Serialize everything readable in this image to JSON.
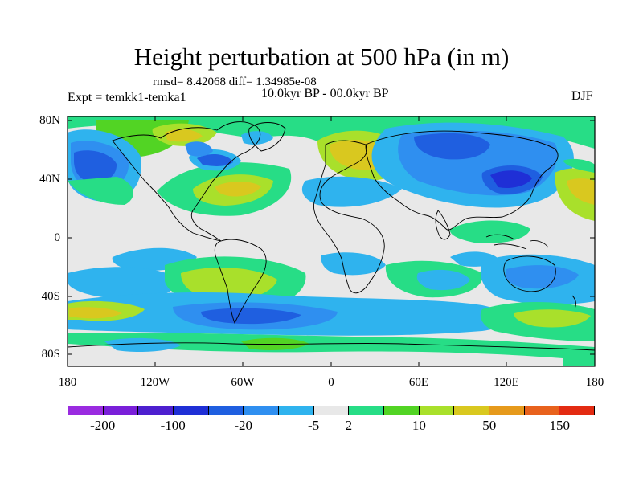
{
  "title": "Height perturbation at 500 hPa (in m)",
  "stats": "rmsd= 8.42068 diff= 1.34985e-08",
  "period": "10.0kyr BP - 00.0kyr BP",
  "experiment": "Expt = temkk1-temka1",
  "season": "DJF",
  "lat_labels": [
    "80N",
    "40N",
    "0",
    "40S",
    "80S"
  ],
  "lon_labels": [
    "180",
    "120W",
    "60W",
    "0",
    "60E",
    "120E",
    "180"
  ],
  "colorbar": {
    "colors": [
      "#9a2be0",
      "#7a1fd9",
      "#4d1fcf",
      "#1f2fd6",
      "#1f5fe0",
      "#2f8ff0",
      "#2fb3ee",
      "#e8e8e8",
      "#27dd86",
      "#52d424",
      "#a9e02b",
      "#d9c81f",
      "#e69a1c",
      "#e8621d",
      "#e32b12"
    ],
    "labels": [
      "-200",
      "-100",
      "-20",
      "-5",
      "2",
      "10",
      "50",
      "150"
    ],
    "label_tick_index": [
      1,
      3,
      5,
      7,
      8,
      10,
      12,
      14
    ]
  },
  "colors": {
    "neutral": "#e8e8e8",
    "weak_pos": "#27dd86",
    "pos": "#52d424",
    "strong_pos": "#a9e02b",
    "very_pos": "#d9c81f",
    "weak_neg": "#2fb3ee",
    "neg": "#2f8ff0",
    "strong_neg": "#1f5fe0",
    "very_neg": "#1f2fd6"
  }
}
